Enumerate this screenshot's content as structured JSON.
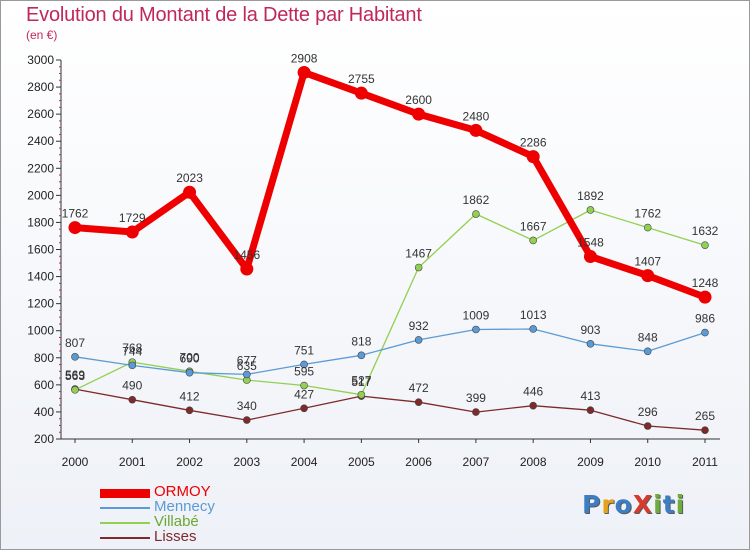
{
  "chart_data": {
    "type": "line",
    "title": "Evolution du Montant de la Dette par Habitant",
    "subtitle": "(en €)",
    "x": [
      "2000",
      "2001",
      "2002",
      "2003",
      "2004",
      "2005",
      "2006",
      "2007",
      "2008",
      "2009",
      "2010",
      "2011"
    ],
    "ylim": [
      200,
      3000
    ],
    "yticks": [
      200,
      400,
      600,
      800,
      1000,
      1200,
      1400,
      1600,
      1800,
      2000,
      2200,
      2400,
      2600,
      2800,
      3000
    ],
    "grid": false,
    "legend_position": "bottom-left",
    "series": [
      {
        "name": "ORMOY",
        "color": "#ee0000",
        "values": [
          1762,
          1729,
          2023,
          1456,
          2908,
          2755,
          2600,
          2480,
          2286,
          1548,
          1407,
          1248
        ],
        "labels": [
          "1762",
          "1729",
          "2023",
          "1456",
          "2908",
          "2755",
          "2600",
          "2480",
          "2286",
          "1548",
          "1407",
          "1248"
        ]
      },
      {
        "name": "Mennecy",
        "color": "#5b9bd5",
        "values": [
          807,
          744,
          690,
          677,
          751,
          818,
          932,
          1009,
          1013,
          903,
          848,
          986
        ],
        "labels": [
          "807",
          "744",
          "690",
          "677",
          "751",
          "818",
          "932",
          "1009",
          "1013",
          "903",
          "848",
          "986"
        ]
      },
      {
        "name": "Villabé",
        "color": "#92d050",
        "values": [
          563,
          768,
          700,
          635,
          595,
          527,
          1467,
          1862,
          1667,
          1892,
          1762,
          1632
        ],
        "labels": [
          "563",
          "768",
          "700",
          "635",
          "595",
          "527",
          "1467",
          "1862",
          "1667",
          "1892",
          "1762",
          "1632"
        ]
      },
      {
        "name": "Lisses",
        "color": "#7f2a2a",
        "values": [
          569,
          490,
          412,
          340,
          427,
          517,
          472,
          399,
          446,
          413,
          296,
          265
        ],
        "labels": [
          "569",
          "490",
          "412",
          "340",
          "427",
          "517",
          "472",
          "399",
          "446",
          "413",
          "296",
          "265"
        ]
      }
    ]
  },
  "logo": {
    "text": "ProXiti",
    "colors": [
      "#3c7dc4",
      "#e5a21a",
      "#3c7dc4",
      "#d63a2e",
      "#6cae3c",
      "#3c7dc4",
      "#6cae3c"
    ]
  }
}
